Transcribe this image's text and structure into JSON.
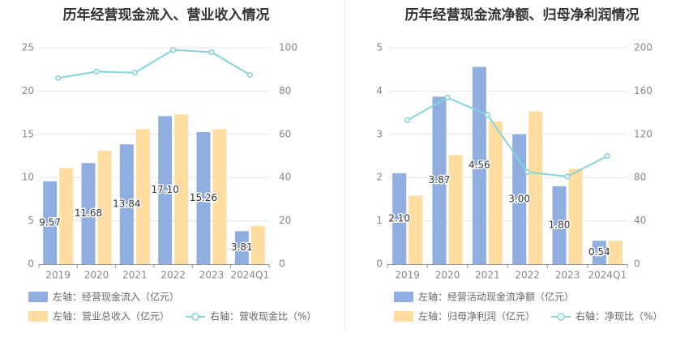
{
  "colors": {
    "primary_bar": "#90aee0",
    "secondary_bar": "#ffdca0",
    "line": "#85d4dc",
    "divider": "#eeeeee"
  },
  "chart_data": [
    {
      "type": "bar",
      "title": "历年经营现金流入、营业收入情况",
      "categories": [
        "2019",
        "2020",
        "2021",
        "2022",
        "2023",
        "2024Q1"
      ],
      "y_left": {
        "ticks": [
          "0",
          "5",
          "10",
          "15",
          "20",
          "25"
        ],
        "lim": [
          0,
          25
        ]
      },
      "y_right": {
        "ticks": [
          "0",
          "20",
          "40",
          "60",
          "80",
          "100"
        ],
        "lim": [
          0,
          100
        ]
      },
      "series": [
        {
          "name": "左轴：经营现金流入（亿元）",
          "axis": "left",
          "kind": "bar",
          "values": [
            9.57,
            11.68,
            13.84,
            17.1,
            15.26,
            3.81
          ],
          "labels": [
            "9.57",
            "11.68",
            "13.84",
            "17.10",
            "15.26",
            "3.81"
          ]
        },
        {
          "name": "左轴：营业总收入（亿元）",
          "axis": "left",
          "kind": "bar",
          "values": [
            11.1,
            13.1,
            15.6,
            17.3,
            15.6,
            4.4
          ]
        },
        {
          "name": "右轴：营收现金比（%）",
          "axis": "right",
          "kind": "line",
          "values": [
            86,
            89,
            88.5,
            99,
            98,
            87.5
          ]
        }
      ]
    },
    {
      "type": "bar",
      "title": "历年经营现金流净额、归母净利润情况",
      "categories": [
        "2019",
        "2020",
        "2021",
        "2022",
        "2023",
        "2024Q1"
      ],
      "y_left": {
        "ticks": [
          "0",
          "1",
          "2",
          "3",
          "4",
          "5"
        ],
        "lim": [
          0,
          5
        ]
      },
      "y_right": {
        "ticks": [
          "0",
          "40",
          "80",
          "120",
          "160",
          "200"
        ],
        "lim": [
          0,
          200
        ]
      },
      "series": [
        {
          "name": "左轴：经营活动现金流净额（亿元）",
          "axis": "left",
          "kind": "bar",
          "values": [
            2.1,
            3.87,
            4.56,
            3.0,
            1.8,
            0.54
          ],
          "labels": [
            "2.10",
            "3.87",
            "4.56",
            "3.00",
            "1.80",
            "0.54"
          ]
        },
        {
          "name": "左轴：归母净利润（亿元）",
          "axis": "left",
          "kind": "bar",
          "values": [
            1.58,
            2.52,
            3.3,
            3.53,
            2.2,
            0.54
          ]
        },
        {
          "name": "右轴：净现比（%）",
          "axis": "right",
          "kind": "line",
          "values": [
            133,
            154,
            138,
            85,
            81,
            100
          ]
        }
      ]
    }
  ]
}
